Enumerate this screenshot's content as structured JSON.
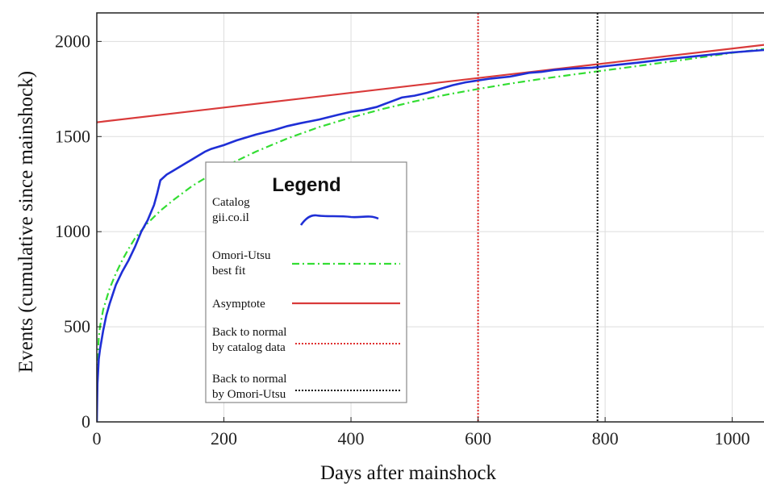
{
  "chart_data": {
    "type": "line",
    "xlabel": "Days after mainshock",
    "ylabel": "Events (cumulative since mainshock)",
    "xlim": [
      0,
      1050
    ],
    "ylim": [
      0,
      2150
    ],
    "xticks": [
      0,
      200,
      400,
      600,
      800,
      1000
    ],
    "yticks": [
      0,
      500,
      1000,
      1500,
      2000
    ],
    "grid": true,
    "legend": {
      "title": "Legend",
      "placement": "center-left",
      "entries": [
        {
          "lines": [
            "Catalog",
            "gii.co.il"
          ]
        },
        {
          "lines": [
            "Omori-Utsu",
            "best fit"
          ]
        },
        {
          "lines": [
            "Asymptote"
          ]
        },
        {
          "lines": [
            "Back to normal",
            "by catalog data"
          ]
        },
        {
          "lines": [
            "Back to normal",
            "by Omori-Utsu"
          ]
        }
      ]
    },
    "series": [
      {
        "key": "catalog",
        "style": "solid",
        "color": "#1f2fd6",
        "x": [
          0,
          1,
          3,
          5,
          10,
          15,
          20,
          30,
          40,
          50,
          60,
          70,
          80,
          90,
          95,
          100,
          110,
          120,
          130,
          140,
          150,
          160,
          170,
          180,
          200,
          220,
          250,
          280,
          300,
          320,
          350,
          380,
          400,
          420,
          440,
          460,
          480,
          500,
          520,
          540,
          560,
          580,
          600,
          620,
          650,
          680,
          700,
          720,
          750,
          780,
          800,
          850,
          900,
          950,
          1000,
          1050
        ],
        "y": [
          0,
          200,
          330,
          380,
          480,
          560,
          620,
          720,
          790,
          850,
          920,
          1000,
          1060,
          1140,
          1200,
          1270,
          1300,
          1320,
          1340,
          1360,
          1380,
          1400,
          1420,
          1435,
          1455,
          1480,
          1510,
          1535,
          1555,
          1570,
          1590,
          1615,
          1630,
          1640,
          1655,
          1680,
          1705,
          1715,
          1730,
          1750,
          1770,
          1785,
          1795,
          1805,
          1815,
          1835,
          1840,
          1850,
          1858,
          1862,
          1870,
          1888,
          1908,
          1925,
          1942,
          1955
        ]
      },
      {
        "key": "omori",
        "style": "dashdot",
        "color": "#33dd33",
        "x": [
          0,
          1,
          3,
          5,
          10,
          20,
          30,
          40,
          50,
          60,
          80,
          100,
          120,
          150,
          200,
          250,
          300,
          350,
          400,
          450,
          500,
          550,
          600,
          650,
          700,
          750,
          800,
          850,
          900,
          950,
          1000,
          1050
        ],
        "y": [
          0,
          300,
          440,
          500,
          590,
          700,
          780,
          850,
          910,
          965,
          1045,
          1110,
          1165,
          1240,
          1340,
          1420,
          1490,
          1550,
          1600,
          1645,
          1685,
          1720,
          1750,
          1778,
          1803,
          1826,
          1848,
          1870,
          1893,
          1916,
          1940,
          1960
        ]
      },
      {
        "key": "asymptote",
        "style": "solid",
        "color": "#d93a3a",
        "x": [
          0,
          1050
        ],
        "y": [
          1575,
          1982
        ]
      }
    ],
    "vlines": [
      {
        "key": "normal-catalog",
        "x": 600,
        "style": "dotted",
        "color": "#e03030"
      },
      {
        "key": "normal-omori",
        "x": 788,
        "style": "dotted",
        "color": "#111111"
      }
    ]
  }
}
